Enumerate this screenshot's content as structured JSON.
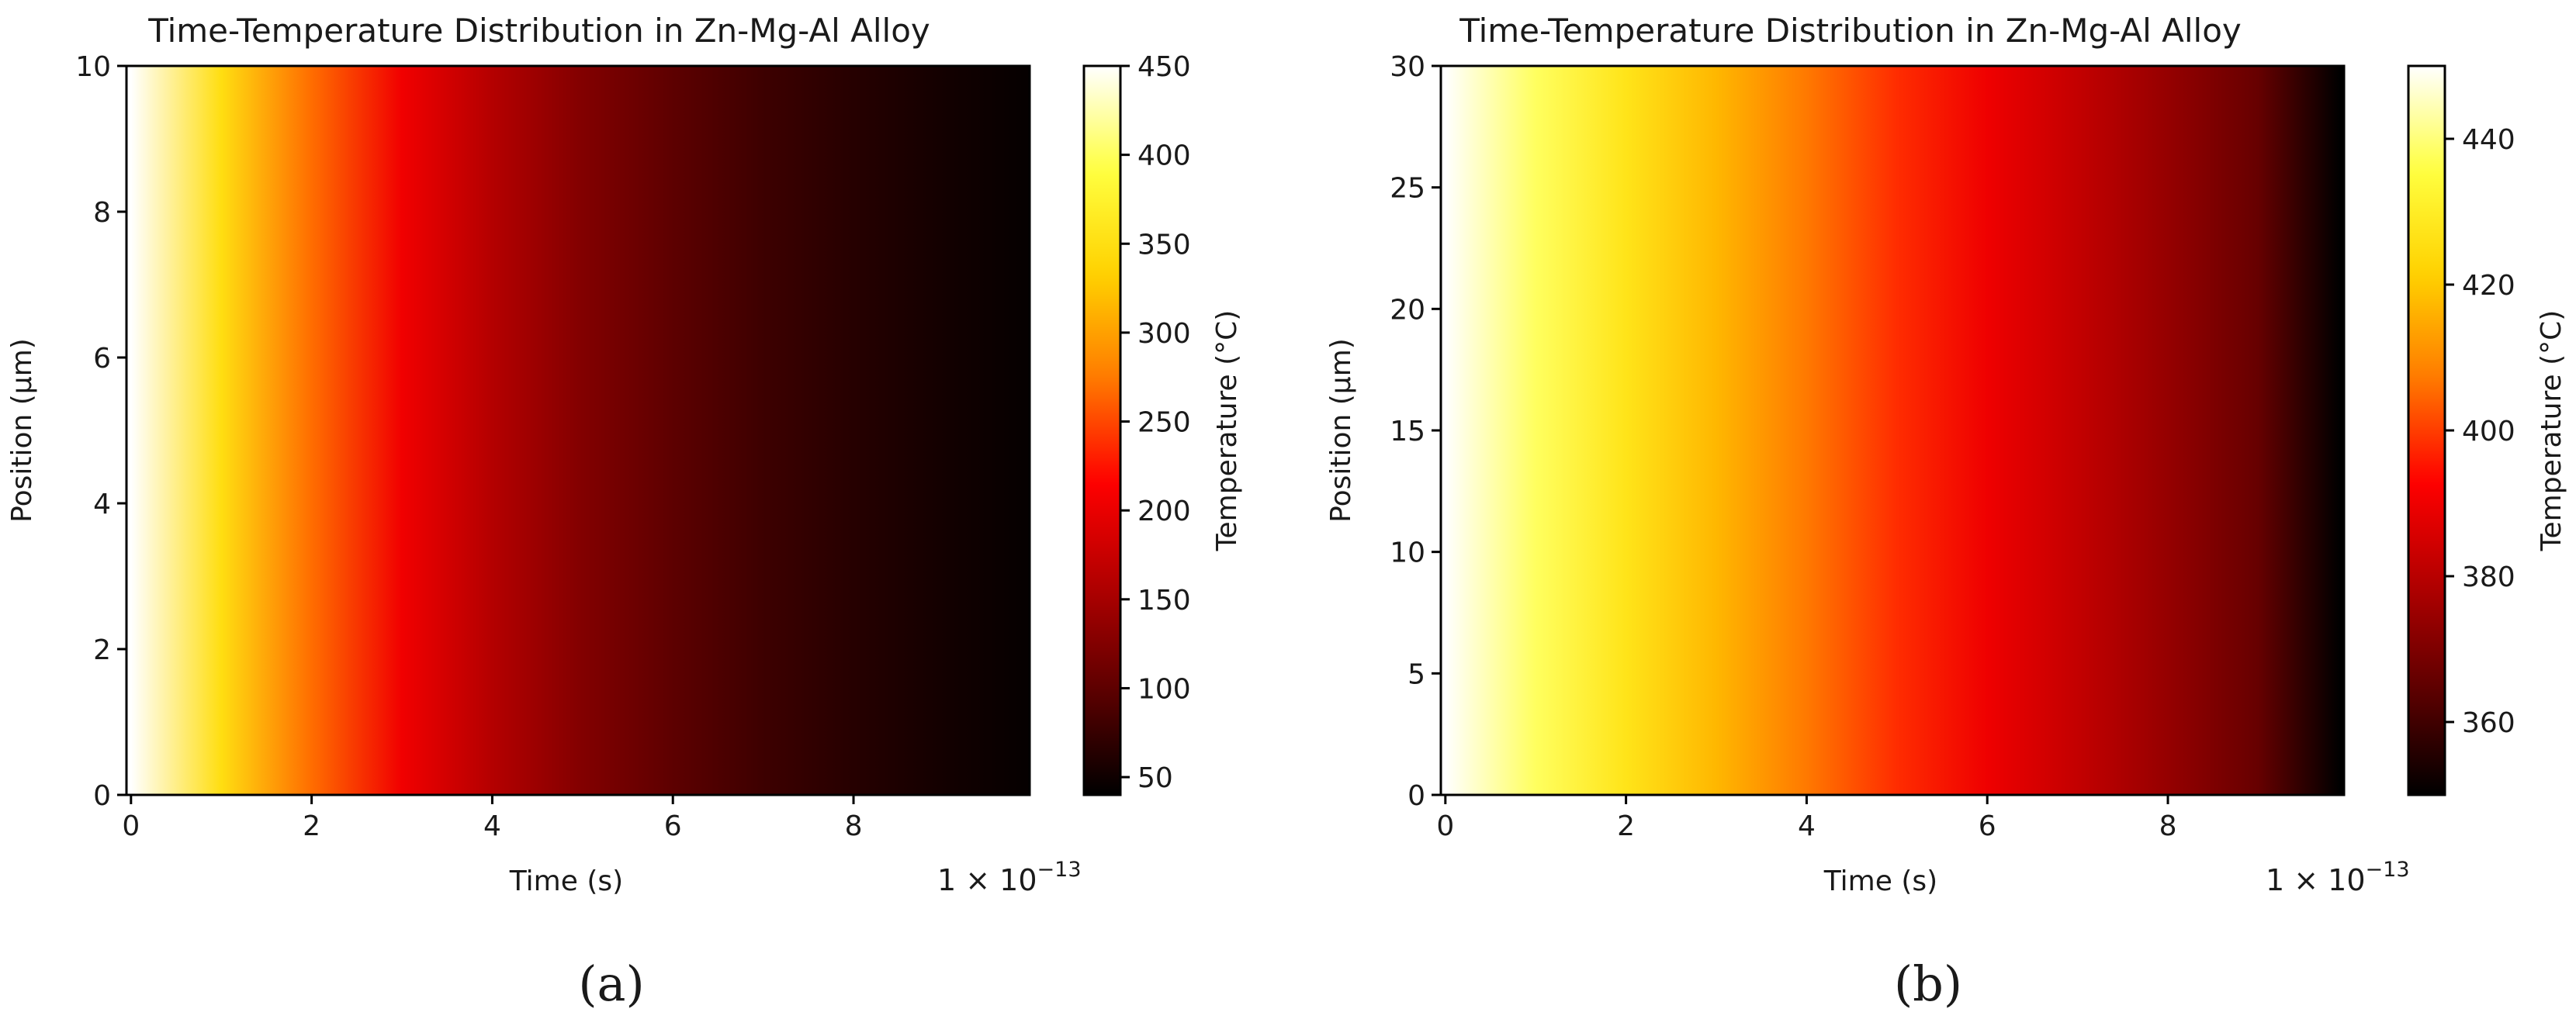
{
  "colors": {
    "colormap": [
      "#000000",
      "#5c0000",
      "#b00000",
      "#ff0000",
      "#ff7a00",
      "#ffd200",
      "#ffff40",
      "#ffffff"
    ],
    "text": "#1a1a1a",
    "spine": "#000000"
  },
  "chart_data": [
    {
      "type": "heatmap",
      "panel_label": "(a)",
      "title": "Time-Temperature Distribution in Zn-Mg-Al Alloy",
      "xlabel": "Time (s)",
      "ylabel": "Position (µm)",
      "x_offset_label": "1 × 10",
      "x_offset_exponent": "−13",
      "colorbar_label": "Temperature (°C)",
      "xlim": [
        -0.05,
        9.95
      ],
      "ylim": [
        0,
        10
      ],
      "x_ticks": [
        0,
        2,
        4,
        6,
        8
      ],
      "y_ticks": [
        0,
        2,
        4,
        6,
        8,
        10
      ],
      "clim": [
        40,
        450
      ],
      "colorbar_ticks": [
        50,
        100,
        150,
        200,
        250,
        300,
        350,
        400,
        450
      ],
      "x": [
        0,
        1,
        2,
        3,
        4,
        5,
        6,
        7,
        8,
        9,
        9.9
      ],
      "temperature": [
        450,
        348,
        268,
        205,
        160,
        125,
        99,
        79,
        64,
        52,
        44
      ]
    },
    {
      "type": "heatmap",
      "panel_label": "(b)",
      "title": "Time-Temperature Distribution in Zn-Mg-Al Alloy",
      "xlabel": "Time (s)",
      "ylabel": "Position (µm)",
      "x_offset_label": "1 × 10",
      "x_offset_exponent": "−13",
      "colorbar_label": "Temperature (°C)",
      "xlim": [
        -0.05,
        9.95
      ],
      "ylim": [
        0,
        30
      ],
      "x_ticks": [
        0,
        2,
        4,
        6,
        8
      ],
      "y_ticks": [
        0,
        5,
        10,
        15,
        20,
        25,
        30
      ],
      "clim": [
        350,
        450
      ],
      "colorbar_ticks": [
        360,
        380,
        400,
        420,
        440
      ],
      "x": [
        0,
        1,
        2,
        3,
        4,
        5,
        6,
        7,
        8,
        9,
        9.9
      ],
      "temperature": [
        450,
        438,
        427,
        417,
        407,
        398,
        390,
        382,
        374,
        366,
        350
      ]
    }
  ]
}
